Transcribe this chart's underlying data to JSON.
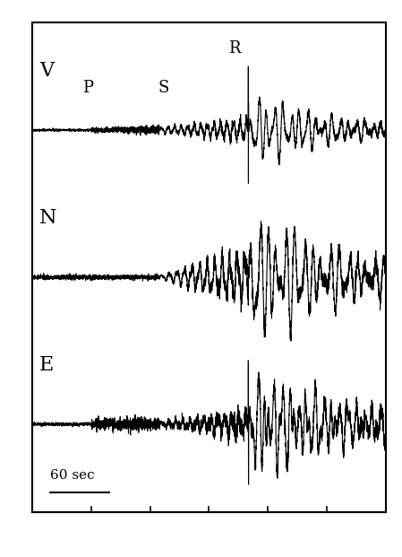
{
  "channels": [
    "V",
    "N",
    "E"
  ],
  "scale_bar_label": "60 sec",
  "total_duration": 360,
  "P_arrival": 60,
  "S_arrival": 130,
  "R_arrival": 220,
  "noise_seed": 42,
  "line_color": "#000000",
  "background_color": "#ffffff",
  "linewidth": 0.8,
  "offsets": [
    0.78,
    0.48,
    0.18
  ],
  "trace_scale": 0.13,
  "label_fontsize": 16,
  "annotation_fontsize": 13
}
